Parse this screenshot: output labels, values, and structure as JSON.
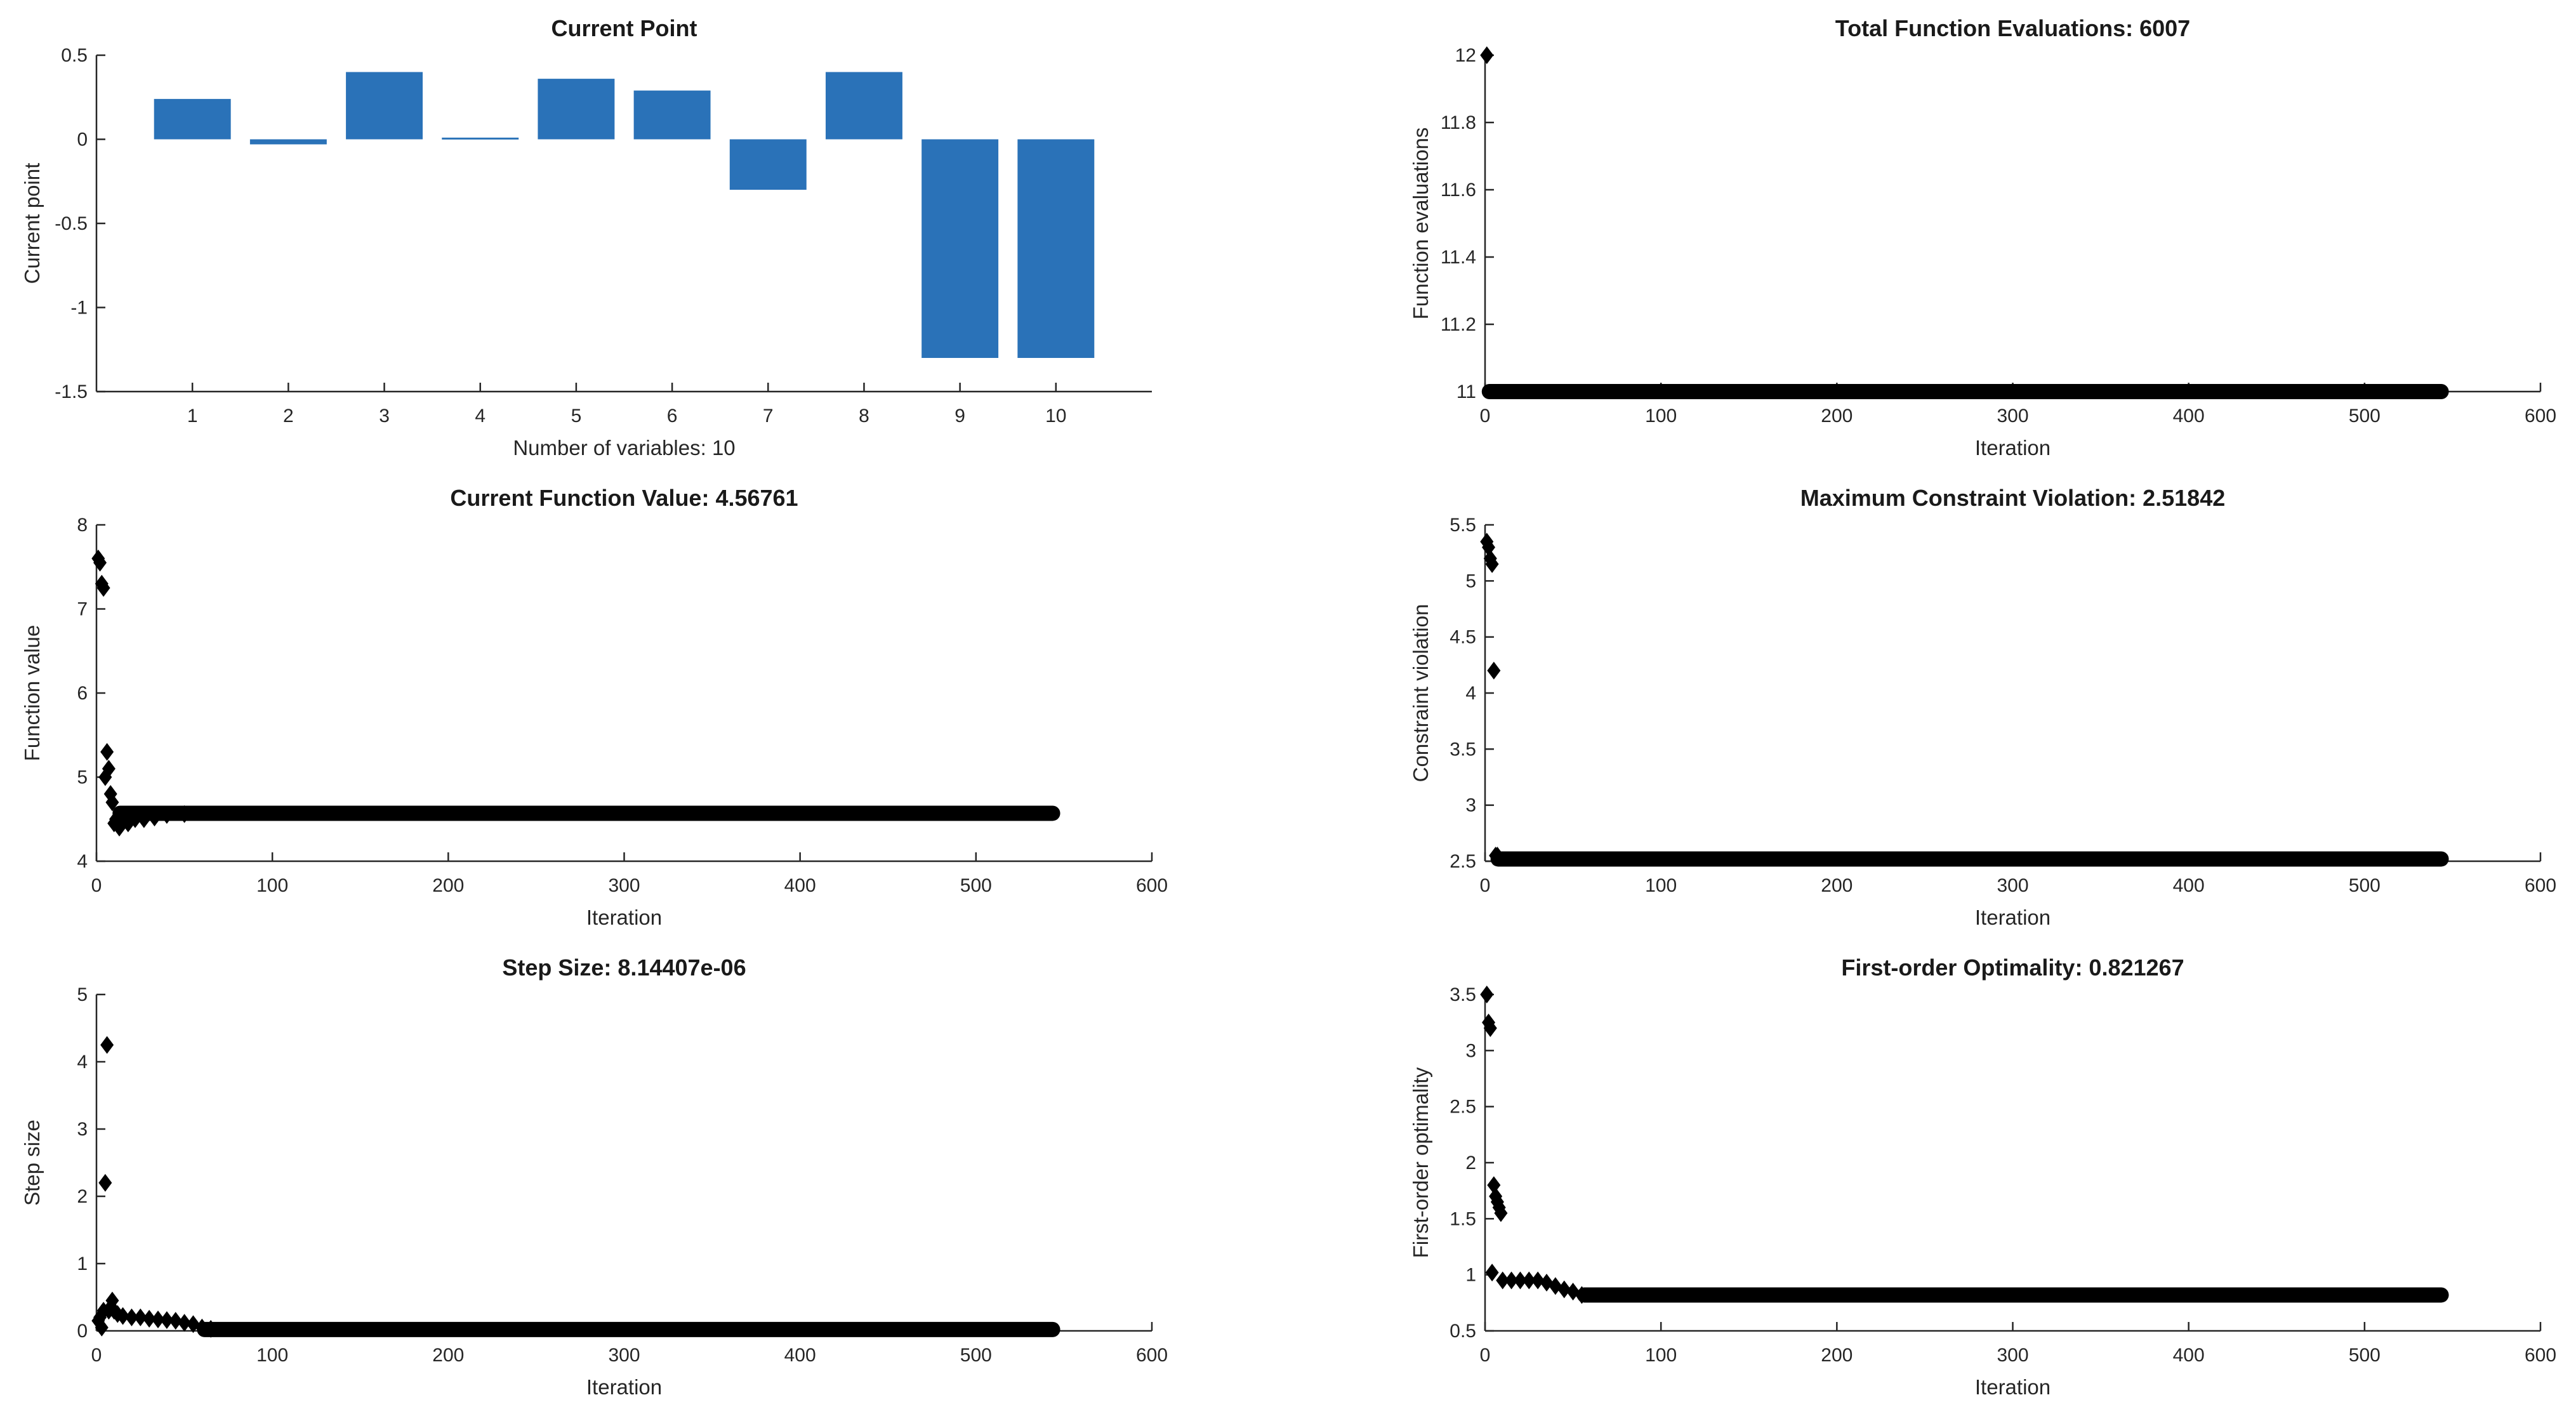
{
  "chart_data": [
    {
      "id": "current-point",
      "type": "bar",
      "title": "Current Point",
      "xlabel": "Number of variables: 10",
      "ylabel": "Current point",
      "categories": [
        "1",
        "2",
        "3",
        "4",
        "5",
        "6",
        "7",
        "8",
        "9",
        "10"
      ],
      "values": [
        0.24,
        -0.03,
        0.4,
        0.01,
        0.36,
        0.29,
        -0.3,
        0.4,
        -1.3,
        -1.3
      ],
      "xlim": [
        0,
        11
      ],
      "ylim": [
        -1.5,
        0.5
      ],
      "yticks": [
        -1.5,
        -1,
        -0.5,
        0,
        0.5
      ],
      "ytick_labels": [
        "-1.5",
        "-1",
        "-0.5",
        "0",
        "0.5"
      ],
      "bar_color": "#2a72b8",
      "grid": false
    },
    {
      "id": "total-function-evaluations",
      "type": "scatter",
      "title": "Total Function Evaluations: 6007",
      "xlabel": "Iteration",
      "ylabel": "Function evaluations",
      "xlim": [
        0,
        600
      ],
      "ylim": [
        11,
        12
      ],
      "xticks": [
        0,
        100,
        200,
        300,
        400,
        500,
        600
      ],
      "yticks": [
        11,
        11.2,
        11.4,
        11.6,
        11.8,
        12
      ],
      "ytick_labels": [
        "11",
        "11.2",
        "11.4",
        "11.6",
        "11.8",
        "12"
      ],
      "points": [
        [
          1,
          12
        ]
      ],
      "band": {
        "x_start": 1,
        "x_end": 545,
        "y": 11
      },
      "marker": "diamond",
      "color": "#000000"
    },
    {
      "id": "current-function-value",
      "type": "scatter",
      "title": "Current Function Value: 4.56761",
      "xlabel": "Iteration",
      "ylabel": "Function value",
      "xlim": [
        0,
        600
      ],
      "ylim": [
        4,
        8
      ],
      "xticks": [
        0,
        100,
        200,
        300,
        400,
        500,
        600
      ],
      "yticks": [
        4,
        5,
        6,
        7,
        8
      ],
      "ytick_labels": [
        "4",
        "5",
        "6",
        "7",
        "8"
      ],
      "points": [
        [
          1,
          7.6
        ],
        [
          2,
          7.55
        ],
        [
          3,
          7.3
        ],
        [
          4,
          7.25
        ],
        [
          5,
          5.0
        ],
        [
          6,
          5.3
        ],
        [
          7,
          5.1
        ],
        [
          8,
          4.8
        ],
        [
          9,
          4.7
        ],
        [
          10,
          4.45
        ],
        [
          11,
          4.5
        ],
        [
          13,
          4.4
        ],
        [
          15,
          4.5
        ],
        [
          18,
          4.45
        ],
        [
          22,
          4.5
        ],
        [
          27,
          4.5
        ],
        [
          33,
          4.52
        ],
        [
          40,
          4.55
        ],
        [
          50,
          4.56
        ]
      ],
      "band": {
        "x_start": 12,
        "x_end": 545,
        "y": 4.57
      },
      "marker": "diamond",
      "color": "#000000"
    },
    {
      "id": "maximum-constraint-violation",
      "type": "scatter",
      "title": "Maximum Constraint Violation: 2.51842",
      "xlabel": "Iteration",
      "ylabel": "Constraint violation",
      "xlim": [
        0,
        600
      ],
      "ylim": [
        2.5,
        5.5
      ],
      "xticks": [
        0,
        100,
        200,
        300,
        400,
        500,
        600
      ],
      "yticks": [
        2.5,
        3,
        3.5,
        4,
        4.5,
        5,
        5.5
      ],
      "ytick_labels": [
        "2.5",
        "3",
        "3.5",
        "4",
        "4.5",
        "5",
        "5.5"
      ],
      "points": [
        [
          1,
          5.35
        ],
        [
          2,
          5.3
        ],
        [
          3,
          5.2
        ],
        [
          4,
          5.15
        ],
        [
          5,
          4.2
        ],
        [
          6,
          2.55
        ],
        [
          7,
          2.55
        ]
      ],
      "band": {
        "x_start": 6,
        "x_end": 545,
        "y": 2.52
      },
      "marker": "diamond",
      "color": "#000000"
    },
    {
      "id": "step-size",
      "type": "scatter",
      "title": "Step Size: 8.14407e-06",
      "xlabel": "Iteration",
      "ylabel": "Step size",
      "xlim": [
        0,
        600
      ],
      "ylim": [
        0,
        5
      ],
      "xticks": [
        0,
        100,
        200,
        300,
        400,
        500,
        600
      ],
      "yticks": [
        0,
        1,
        2,
        3,
        4,
        5
      ],
      "ytick_labels": [
        "0",
        "1",
        "2",
        "3",
        "4",
        "5"
      ],
      "points": [
        [
          1,
          0.15
        ],
        [
          2,
          0.2
        ],
        [
          3,
          0.05
        ],
        [
          4,
          0.3
        ],
        [
          5,
          2.2
        ],
        [
          6,
          4.25
        ],
        [
          7,
          0.3
        ],
        [
          8,
          0.35
        ],
        [
          9,
          0.45
        ],
        [
          10,
          0.3
        ],
        [
          12,
          0.25
        ],
        [
          15,
          0.22
        ],
        [
          20,
          0.2
        ],
        [
          25,
          0.2
        ],
        [
          30,
          0.18
        ],
        [
          35,
          0.17
        ],
        [
          40,
          0.16
        ],
        [
          45,
          0.15
        ],
        [
          50,
          0.12
        ],
        [
          55,
          0.1
        ],
        [
          60,
          0.05
        ],
        [
          65,
          0.03
        ]
      ],
      "band": {
        "x_start": 60,
        "x_end": 545,
        "y": 0.02
      },
      "marker": "diamond",
      "color": "#000000"
    },
    {
      "id": "first-order-optimality",
      "type": "scatter",
      "title": "First-order Optimality: 0.821267",
      "xlabel": "Iteration",
      "ylabel": "First-order optimality",
      "xlim": [
        0,
        600
      ],
      "ylim": [
        0.5,
        3.5
      ],
      "xticks": [
        0,
        100,
        200,
        300,
        400,
        500,
        600
      ],
      "yticks": [
        0.5,
        1,
        1.5,
        2,
        2.5,
        3,
        3.5
      ],
      "ytick_labels": [
        "0.5",
        "1",
        "1.5",
        "2",
        "2.5",
        "3",
        "3.5"
      ],
      "points": [
        [
          1,
          3.5
        ],
        [
          2,
          3.25
        ],
        [
          3,
          3.2
        ],
        [
          4,
          1.02
        ],
        [
          5,
          1.8
        ],
        [
          6,
          1.7
        ],
        [
          7,
          1.65
        ],
        [
          8,
          1.6
        ],
        [
          9,
          1.55
        ],
        [
          10,
          0.95
        ],
        [
          15,
          0.95
        ],
        [
          20,
          0.95
        ],
        [
          25,
          0.95
        ],
        [
          30,
          0.95
        ],
        [
          35,
          0.93
        ],
        [
          40,
          0.9
        ],
        [
          45,
          0.87
        ],
        [
          50,
          0.85
        ],
        [
          55,
          0.82
        ]
      ],
      "band": {
        "x_start": 55,
        "x_end": 545,
        "y": 0.82
      },
      "marker": "diamond",
      "color": "#000000"
    }
  ]
}
